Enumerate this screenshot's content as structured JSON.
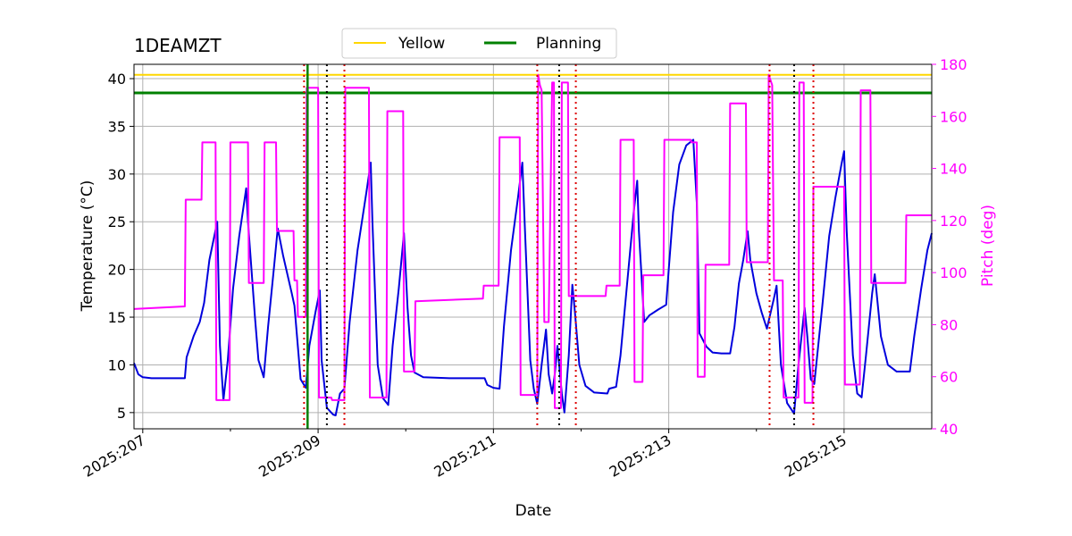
{
  "chart_data": {
    "type": "line",
    "title": "1DEAMZT",
    "xlabel": "Date",
    "ylabel": "Temperature ($^\\circ$C)",
    "y2label": "Pitch (deg)",
    "xlim": [
      206.9,
      216.0
    ],
    "ylim": [
      3.3,
      41.5
    ],
    "y2lim": [
      40,
      180
    ],
    "x_ticks": [
      207,
      209,
      211,
      213,
      215
    ],
    "x_tick_labels": [
      "2025:207",
      "2025:209",
      "2025:211",
      "2025:213",
      "2025:215"
    ],
    "x_minor_ticks": [
      208,
      210,
      212,
      214
    ],
    "y_ticks": [
      5,
      10,
      15,
      20,
      25,
      30,
      35,
      40
    ],
    "y2_ticks": [
      40,
      60,
      80,
      100,
      120,
      140,
      160,
      180
    ],
    "grid": true,
    "legend": {
      "placement": "top-center",
      "entries": [
        {
          "label": "Yellow",
          "color": "#FFD700"
        },
        {
          "label": "Planning",
          "color": "#008000"
        }
      ]
    },
    "limits": [
      {
        "name": "Yellow",
        "y": 40.4,
        "color": "#FFD700"
      },
      {
        "name": "Planning",
        "y": 38.5,
        "color": "#008000"
      }
    ],
    "planning_vline": {
      "x": 208.88,
      "color": "#008000"
    },
    "red_vlines": [
      208.84,
      209.3,
      211.5,
      211.94,
      214.15,
      214.65
    ],
    "black_vlines": [
      209.1,
      211.75,
      214.43
    ],
    "series": [
      {
        "axis": "left",
        "color": "#0000DD",
        "points": [
          [
            206.9,
            10.2
          ],
          [
            206.95,
            9.0
          ],
          [
            207.0,
            8.7
          ],
          [
            207.1,
            8.6
          ],
          [
            207.3,
            8.6
          ],
          [
            207.48,
            8.6
          ],
          [
            207.5,
            10.8
          ],
          [
            207.58,
            13.0
          ],
          [
            207.65,
            14.5
          ],
          [
            207.7,
            16.5
          ],
          [
            207.76,
            21.0
          ],
          [
            207.85,
            25.0
          ],
          [
            207.88,
            12.0
          ],
          [
            207.92,
            6.3
          ],
          [
            207.97,
            10.5
          ],
          [
            208.03,
            18.0
          ],
          [
            208.1,
            23.5
          ],
          [
            208.18,
            28.5
          ],
          [
            208.2,
            25.0
          ],
          [
            208.28,
            15.0
          ],
          [
            208.32,
            10.5
          ],
          [
            208.38,
            8.7
          ],
          [
            208.43,
            14.0
          ],
          [
            208.5,
            20.5
          ],
          [
            208.54,
            24.3
          ],
          [
            208.6,
            21.5
          ],
          [
            208.65,
            19.5
          ],
          [
            208.7,
            17.5
          ],
          [
            208.73,
            16.2
          ],
          [
            208.8,
            8.5
          ],
          [
            208.86,
            7.6
          ],
          [
            208.9,
            12.0
          ],
          [
            208.97,
            15.5
          ],
          [
            209.02,
            17.8
          ],
          [
            209.04,
            10.5
          ],
          [
            209.1,
            5.5
          ],
          [
            209.17,
            4.8
          ],
          [
            209.2,
            4.7
          ],
          [
            209.25,
            7.0
          ],
          [
            209.3,
            7.5
          ],
          [
            209.36,
            14.5
          ],
          [
            209.45,
            22.0
          ],
          [
            209.55,
            28.0
          ],
          [
            209.6,
            31.2
          ],
          [
            209.62,
            25.0
          ],
          [
            209.68,
            10.0
          ],
          [
            209.74,
            6.5
          ],
          [
            209.8,
            5.8
          ],
          [
            209.85,
            12.0
          ],
          [
            209.92,
            18.0
          ],
          [
            209.98,
            23.8
          ],
          [
            210.02,
            16.0
          ],
          [
            210.06,
            11.0
          ],
          [
            210.1,
            9.2
          ],
          [
            210.2,
            8.7
          ],
          [
            210.5,
            8.6
          ],
          [
            210.9,
            8.6
          ],
          [
            210.93,
            7.9
          ],
          [
            211.0,
            7.6
          ],
          [
            211.07,
            7.5
          ],
          [
            211.12,
            14.0
          ],
          [
            211.2,
            22.0
          ],
          [
            211.28,
            27.5
          ],
          [
            211.33,
            31.2
          ],
          [
            211.36,
            24.0
          ],
          [
            211.42,
            10.5
          ],
          [
            211.46,
            7.5
          ],
          [
            211.5,
            5.9
          ],
          [
            211.55,
            10.0
          ],
          [
            211.6,
            13.7
          ],
          [
            211.63,
            9.0
          ],
          [
            211.67,
            7.0
          ],
          [
            211.7,
            9.0
          ],
          [
            211.73,
            12.0
          ],
          [
            211.78,
            7.0
          ],
          [
            211.81,
            5.0
          ],
          [
            211.86,
            11.0
          ],
          [
            211.9,
            18.4
          ],
          [
            211.93,
            15.5
          ],
          [
            211.98,
            10.0
          ],
          [
            212.05,
            7.8
          ],
          [
            212.15,
            7.1
          ],
          [
            212.3,
            7.0
          ],
          [
            212.32,
            7.5
          ],
          [
            212.4,
            7.7
          ],
          [
            212.45,
            11.0
          ],
          [
            212.52,
            18.0
          ],
          [
            212.6,
            26.0
          ],
          [
            212.64,
            29.3
          ],
          [
            212.66,
            24.0
          ],
          [
            212.72,
            14.5
          ],
          [
            212.78,
            15.2
          ],
          [
            212.88,
            15.8
          ],
          [
            212.97,
            16.3
          ],
          [
            213.0,
            20.0
          ],
          [
            213.05,
            26.0
          ],
          [
            213.12,
            31.0
          ],
          [
            213.2,
            33.0
          ],
          [
            213.28,
            33.6
          ],
          [
            213.32,
            27.0
          ],
          [
            213.35,
            13.3
          ],
          [
            213.43,
            11.9
          ],
          [
            213.5,
            11.3
          ],
          [
            213.6,
            11.2
          ],
          [
            213.7,
            11.2
          ],
          [
            213.75,
            14.0
          ],
          [
            213.8,
            18.5
          ],
          [
            213.85,
            21.0
          ],
          [
            213.9,
            24.0
          ],
          [
            213.93,
            21.0
          ],
          [
            214.0,
            17.5
          ],
          [
            214.06,
            15.5
          ],
          [
            214.12,
            13.8
          ],
          [
            214.2,
            17.0
          ],
          [
            214.23,
            18.3
          ],
          [
            214.28,
            10.0
          ],
          [
            214.35,
            6.0
          ],
          [
            214.43,
            4.9
          ],
          [
            214.48,
            10.0
          ],
          [
            214.55,
            16.0
          ],
          [
            214.58,
            13.0
          ],
          [
            214.62,
            8.5
          ],
          [
            214.66,
            8.0
          ],
          [
            214.75,
            16.0
          ],
          [
            214.83,
            23.5
          ],
          [
            214.9,
            27.5
          ],
          [
            214.97,
            31.0
          ],
          [
            215.0,
            32.4
          ],
          [
            215.03,
            24.0
          ],
          [
            215.1,
            11.0
          ],
          [
            215.15,
            7.0
          ],
          [
            215.2,
            6.6
          ],
          [
            215.25,
            11.0
          ],
          [
            215.32,
            17.5
          ],
          [
            215.35,
            19.5
          ],
          [
            215.42,
            13.0
          ],
          [
            215.5,
            10.0
          ],
          [
            215.6,
            9.3
          ],
          [
            215.7,
            9.3
          ],
          [
            215.75,
            9.3
          ],
          [
            215.8,
            13.0
          ],
          [
            215.88,
            18.0
          ],
          [
            215.95,
            22.0
          ],
          [
            216.0,
            23.8
          ]
        ]
      },
      {
        "axis": "right",
        "color": "#FF00FF",
        "points": [
          [
            206.9,
            86
          ],
          [
            207.48,
            87
          ],
          [
            207.49,
            128
          ],
          [
            207.67,
            128
          ],
          [
            207.68,
            150
          ],
          [
            207.83,
            150
          ],
          [
            207.84,
            51
          ],
          [
            207.99,
            51
          ],
          [
            208.0,
            150
          ],
          [
            208.2,
            150
          ],
          [
            208.21,
            96
          ],
          [
            208.38,
            96
          ],
          [
            208.39,
            150
          ],
          [
            208.52,
            150
          ],
          [
            208.53,
            116
          ],
          [
            208.72,
            116
          ],
          [
            208.73,
            97
          ],
          [
            208.76,
            97
          ],
          [
            208.77,
            83
          ],
          [
            208.86,
            83
          ],
          [
            208.87,
            171
          ],
          [
            209.0,
            171
          ],
          [
            209.01,
            52
          ],
          [
            209.15,
            52
          ],
          [
            209.16,
            51
          ],
          [
            209.3,
            51
          ],
          [
            209.31,
            171
          ],
          [
            209.58,
            171
          ],
          [
            209.59,
            52
          ],
          [
            209.78,
            52
          ],
          [
            209.79,
            162
          ],
          [
            209.97,
            162
          ],
          [
            209.98,
            62
          ],
          [
            210.1,
            62
          ],
          [
            210.11,
            89
          ],
          [
            210.88,
            90
          ],
          [
            210.89,
            95
          ],
          [
            211.06,
            95
          ],
          [
            211.07,
            152
          ],
          [
            211.3,
            152
          ],
          [
            211.31,
            53
          ],
          [
            211.5,
            53
          ],
          [
            211.51,
            176
          ],
          [
            211.53,
            172
          ],
          [
            211.55,
            170
          ],
          [
            211.58,
            81
          ],
          [
            211.63,
            81
          ],
          [
            211.67,
            173
          ],
          [
            211.69,
            173
          ],
          [
            211.7,
            48
          ],
          [
            211.77,
            48
          ],
          [
            211.78,
            173
          ],
          [
            211.85,
            173
          ],
          [
            211.86,
            91
          ],
          [
            212.28,
            91
          ],
          [
            212.29,
            95
          ],
          [
            212.44,
            95
          ],
          [
            212.45,
            151
          ],
          [
            212.6,
            151
          ],
          [
            212.61,
            58
          ],
          [
            212.7,
            58
          ],
          [
            212.71,
            99
          ],
          [
            212.94,
            99
          ],
          [
            212.95,
            151
          ],
          [
            213.25,
            151
          ],
          [
            213.26,
            150
          ],
          [
            213.32,
            150
          ],
          [
            213.33,
            60
          ],
          [
            213.41,
            60
          ],
          [
            213.42,
            103
          ],
          [
            213.69,
            103
          ],
          [
            213.7,
            165
          ],
          [
            213.88,
            165
          ],
          [
            213.89,
            104
          ],
          [
            214.13,
            104
          ],
          [
            214.14,
            176
          ],
          [
            214.18,
            172
          ],
          [
            214.2,
            97
          ],
          [
            214.3,
            97
          ],
          [
            214.31,
            52
          ],
          [
            214.48,
            52
          ],
          [
            214.49,
            173
          ],
          [
            214.54,
            173
          ],
          [
            214.55,
            50
          ],
          [
            214.64,
            50
          ],
          [
            214.65,
            133
          ],
          [
            215.0,
            133
          ],
          [
            215.01,
            57
          ],
          [
            215.18,
            57
          ],
          [
            215.19,
            170
          ],
          [
            215.3,
            170
          ],
          [
            215.31,
            96
          ],
          [
            215.7,
            96
          ],
          [
            215.71,
            122
          ],
          [
            216.0,
            122
          ]
        ]
      }
    ]
  }
}
